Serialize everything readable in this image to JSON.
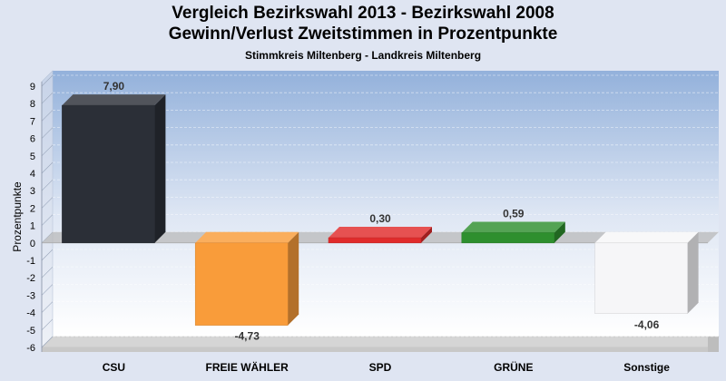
{
  "chart_data": {
    "type": "bar",
    "title": "Vergleich Bezirkswahl 2013 - Bezirkswahl 2008",
    "title2": "Gewinn/Verlust Zweitstimmen in Prozentpunkte",
    "subtitle": "Stimmkreis Miltenberg - Landkreis Miltenberg",
    "ylabel": "Prozentpunkte",
    "ylim": [
      -6,
      9
    ],
    "yticks": [
      "9",
      "8",
      "7",
      "6",
      "5",
      "4",
      "3",
      "2",
      "1",
      "0",
      "-1",
      "-2",
      "-3",
      "-4",
      "-5",
      "-6"
    ],
    "categories": [
      "CSU",
      "FREIE WÄHLER",
      "SPD",
      "GRÜNE",
      "Sonstige"
    ],
    "values": [
      7.9,
      -4.73,
      0.3,
      0.59,
      -4.06
    ],
    "value_labels": [
      "7,90",
      "-4,73",
      "0,30",
      "0,59",
      "-4,06"
    ],
    "colors": [
      "#2b2f37",
      "#f99c3a",
      "#e02b2b",
      "#2e8f2e",
      "#f6f6f8"
    ],
    "grid": true,
    "legend": "none"
  }
}
